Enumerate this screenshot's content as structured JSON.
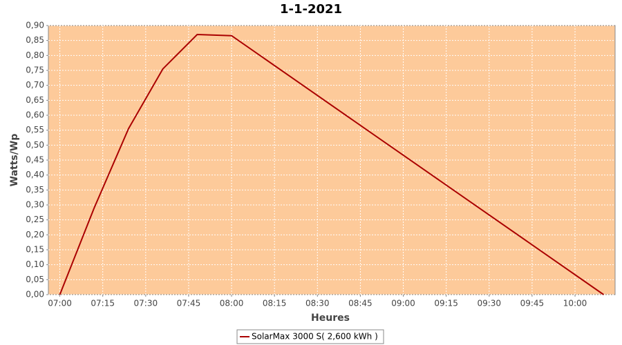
{
  "chart_data": {
    "type": "line",
    "title": "1-1-2021",
    "x_label": "Heures",
    "y_label": "Watts/Wp",
    "x": [
      420,
      432,
      444,
      456,
      468,
      480,
      610
    ],
    "series": [
      {
        "name": "SolarMax 3000 S( 2,600 kWh )",
        "color": "#aa0000",
        "values": [
          0,
          0.29,
          0.555,
          0.755,
          0.87,
          0.866,
          0
        ]
      }
    ],
    "xlim": [
      416,
      614
    ],
    "xticks": [
      {
        "value": 420,
        "label": "07:00"
      },
      {
        "value": 435,
        "label": "07:15"
      },
      {
        "value": 450,
        "label": "07:30"
      },
      {
        "value": 465,
        "label": "07:45"
      },
      {
        "value": 480,
        "label": "08:00"
      },
      {
        "value": 495,
        "label": "08:15"
      },
      {
        "value": 510,
        "label": "08:30"
      },
      {
        "value": 525,
        "label": "08:45"
      },
      {
        "value": 540,
        "label": "09:00"
      },
      {
        "value": 555,
        "label": "09:15"
      },
      {
        "value": 570,
        "label": "09:30"
      },
      {
        "value": 585,
        "label": "09:45"
      },
      {
        "value": 600,
        "label": "10:00"
      }
    ],
    "ylim": [
      0,
      0.9
    ],
    "yticks": [
      {
        "value": 0,
        "label": "0,00"
      },
      {
        "value": 0.05,
        "label": "0,05"
      },
      {
        "value": 0.1,
        "label": "0,10"
      },
      {
        "value": 0.15,
        "label": "0,15"
      },
      {
        "value": 0.2,
        "label": "0,20"
      },
      {
        "value": 0.25,
        "label": "0,25"
      },
      {
        "value": 0.3,
        "label": "0,30"
      },
      {
        "value": 0.35,
        "label": "0,35"
      },
      {
        "value": 0.4,
        "label": "0,40"
      },
      {
        "value": 0.45,
        "label": "0,45"
      },
      {
        "value": 0.5,
        "label": "0,50"
      },
      {
        "value": 0.55,
        "label": "0,55"
      },
      {
        "value": 0.6,
        "label": "0,60"
      },
      {
        "value": 0.65,
        "label": "0,65"
      },
      {
        "value": 0.7,
        "label": "0,70"
      },
      {
        "value": 0.75,
        "label": "0,75"
      },
      {
        "value": 0.8,
        "label": "0,80"
      },
      {
        "value": 0.85,
        "label": "0,85"
      },
      {
        "value": 0.9,
        "label": "0,90"
      }
    ],
    "grid": true,
    "plot_background": "#fdca9a",
    "legend_position": "bottom"
  }
}
